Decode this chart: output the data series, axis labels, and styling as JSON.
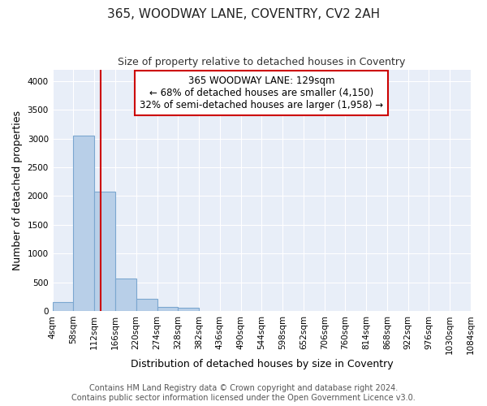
{
  "title": "365, WOODWAY LANE, COVENTRY, CV2 2AH",
  "subtitle": "Size of property relative to detached houses in Coventry",
  "xlabel": "Distribution of detached houses by size in Coventry",
  "ylabel": "Number of detached properties",
  "bin_edges": [
    4,
    58,
    112,
    166,
    220,
    274,
    328,
    382,
    436,
    490,
    544,
    598,
    652,
    706,
    760,
    814,
    868,
    922,
    976,
    1030,
    1084
  ],
  "bar_heights": [
    150,
    3050,
    2075,
    570,
    210,
    75,
    50,
    0,
    0,
    0,
    0,
    0,
    0,
    0,
    0,
    0,
    0,
    0,
    0,
    0
  ],
  "bar_color": "#b8cfe8",
  "bar_edge_color": "#7ba7d0",
  "bar_edge_width": 0.8,
  "property_size": 129,
  "red_line_color": "#cc0000",
  "annotation_text": "365 WOODWAY LANE: 129sqm\n← 68% of detached houses are smaller (4,150)\n32% of semi-detached houses are larger (1,958) →",
  "annotation_box_color": "#ffffff",
  "annotation_box_edge": "#cc0000",
  "ylim": [
    0,
    4200
  ],
  "yticks": [
    0,
    500,
    1000,
    1500,
    2000,
    2500,
    3000,
    3500,
    4000
  ],
  "background_color": "#e8eef8",
  "footer_line1": "Contains HM Land Registry data © Crown copyright and database right 2024.",
  "footer_line2": "Contains public sector information licensed under the Open Government Licence v3.0.",
  "title_fontsize": 11,
  "subtitle_fontsize": 9,
  "axis_label_fontsize": 9,
  "tick_fontsize": 7.5,
  "annotation_fontsize": 8.5,
  "footer_fontsize": 7
}
